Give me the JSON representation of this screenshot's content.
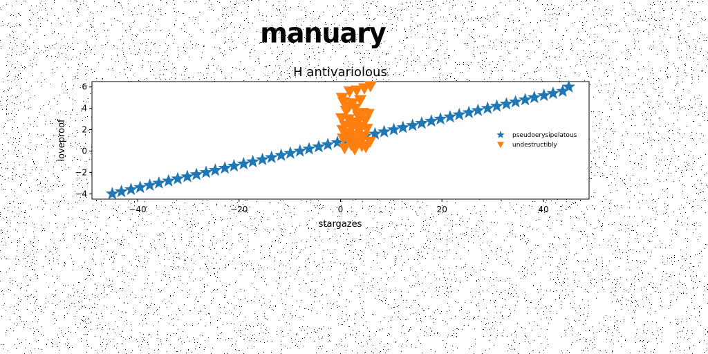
{
  "page": {
    "title": "manuary"
  },
  "chart_data": {
    "type": "scatter",
    "title": "H antivariolous",
    "xlabel": "stargazes",
    "ylabel": "loveproof",
    "xlim": [
      -49,
      49
    ],
    "ylim": [
      -4.5,
      6.5
    ],
    "xticks": [
      -40,
      -20,
      0,
      20,
      40
    ],
    "yticks": [
      -4,
      -2,
      0,
      2,
      4,
      6
    ],
    "grid": false,
    "legend_position": "center-right",
    "series": [
      {
        "name": "pseudoerysipelatous",
        "marker": "star",
        "color": "#1f77b4",
        "x": [
          -45,
          -43.2,
          -41.3,
          -39.5,
          -37.6,
          -35.8,
          -33.9,
          -32.1,
          -30.2,
          -28.4,
          -26.5,
          -24.7,
          -22.8,
          -21,
          -19.1,
          -17.3,
          -15.4,
          -13.6,
          -11.7,
          -9.9,
          -8,
          -6.2,
          -4.3,
          -2.5,
          -0.6,
          1.2,
          3.1,
          4.9,
          6.8,
          8.6,
          10.5,
          12.3,
          14.2,
          16,
          17.9,
          19.7,
          21.6,
          23.4,
          25.3,
          27.1,
          29,
          30.8,
          32.7,
          34.5,
          36.4,
          38.2,
          40.1,
          41.9,
          43.8,
          45
        ],
        "y": [
          -4,
          -3.8,
          -3.6,
          -3.4,
          -3.2,
          -3,
          -2.8,
          -2.6,
          -2.4,
          -2.2,
          -2,
          -1.8,
          -1.6,
          -1.4,
          -1.2,
          -1,
          -0.8,
          -0.6,
          -0.4,
          -0.2,
          0,
          0.2,
          0.4,
          0.6,
          0.8,
          1,
          1.2,
          1.4,
          1.6,
          1.8,
          2,
          2.2,
          2.4,
          2.6,
          2.8,
          3,
          3.2,
          3.4,
          3.6,
          3.8,
          4,
          4.2,
          4.4,
          4.6,
          4.8,
          5,
          5.2,
          5.4,
          5.6,
          6
        ]
      },
      {
        "name": "undestructibly",
        "marker": "triangle-down",
        "color": "#ff7f0e",
        "x": [
          0.3,
          1.8,
          3.2,
          4.7,
          5.9,
          0.6,
          2.4,
          3.9,
          1.1,
          2.9,
          4.4,
          5.5,
          0.2,
          1.6,
          3.5,
          4.9,
          0.9,
          2.2,
          3.0,
          4.1,
          5.2,
          1.4,
          2.6,
          3.7,
          0.5,
          1.9,
          4.6,
          5.8,
          2.1,
          3.3,
          0.8,
          2.8,
          4.2,
          1.3,
          3.6,
          5.0,
          0.4,
          2.5,
          3.9,
          1.7
        ],
        "y": [
          5.0,
          5.6,
          5.7,
          5.9,
          6.1,
          4.6,
          4.5,
          4.8,
          3.8,
          4.0,
          3.6,
          3.5,
          3.1,
          3.0,
          3.3,
          2.9,
          2.4,
          2.2,
          2.5,
          2.3,
          2.1,
          1.7,
          1.5,
          1.9,
          1.2,
          1.0,
          1.4,
          0.9,
          0.6,
          0.8,
          0.3,
          0.2,
          0.5,
          1.6,
          1.1,
          0.4,
          2.0,
          2.7,
          3.2,
          4.2
        ]
      }
    ]
  }
}
